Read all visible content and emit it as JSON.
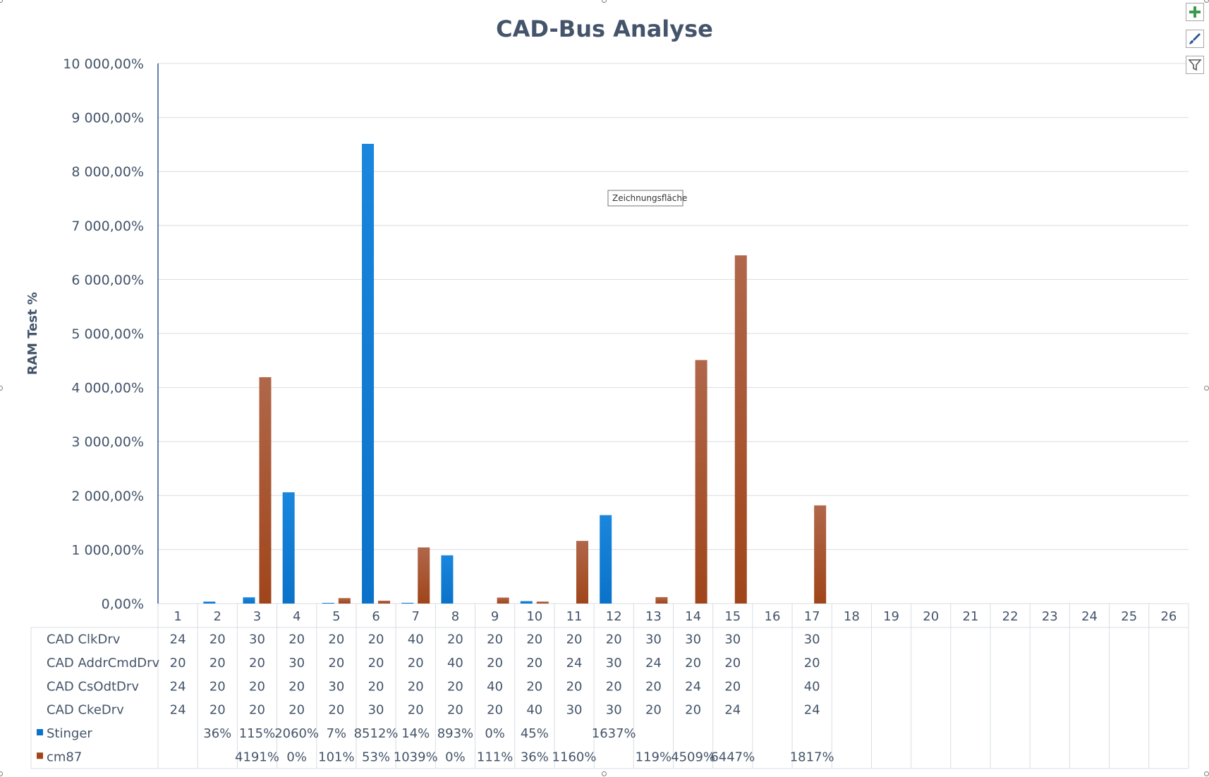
{
  "tooltip": "Zeichnungsfläche",
  "icons": [
    "plus-icon",
    "brush-icon",
    "filter-icon"
  ],
  "colors": {
    "stinger": "#0a72c9",
    "cm87": "#a0451a",
    "text": "#44546a",
    "grid": "#d9dce3"
  },
  "chart_data": {
    "type": "bar",
    "title": "CAD-Bus Analyse",
    "ylabel": "RAM Test %",
    "xlabel": "",
    "ylim": [
      0,
      10000
    ],
    "ytick_step": 1000,
    "ytick_labels": [
      "0,00%",
      "1 000,00%",
      "2 000,00%",
      "3 000,00%",
      "4 000,00%",
      "5 000,00%",
      "6 000,00%",
      "7 000,00%",
      "8 000,00%",
      "9 000,00%",
      "10 000,00%"
    ],
    "categories": [
      "1",
      "2",
      "3",
      "4",
      "5",
      "6",
      "7",
      "8",
      "9",
      "10",
      "11",
      "12",
      "13",
      "14",
      "15",
      "16",
      "17",
      "18",
      "19",
      "20",
      "21",
      "22",
      "23",
      "24",
      "25",
      "26"
    ],
    "grid": true,
    "legend": "data-table",
    "series": [
      {
        "name": "Stinger",
        "color": "#0a72c9",
        "values": [
          null,
          36,
          115,
          2060,
          7,
          8512,
          14,
          893,
          0,
          45,
          null,
          1637,
          null,
          null,
          null,
          null,
          null,
          null,
          null,
          null,
          null,
          null,
          null,
          null,
          null,
          null
        ],
        "labels": [
          "",
          "36%",
          "115%",
          "2060%",
          "7%",
          "8512%",
          "14%",
          "893%",
          "0%",
          "45%",
          "",
          "1637%",
          "",
          "",
          "",
          "",
          "",
          "",
          "",
          "",
          "",
          "",
          "",
          "",
          "",
          ""
        ]
      },
      {
        "name": "cm87",
        "color": "#a0451a",
        "values": [
          null,
          null,
          4191,
          0,
          101,
          53,
          1039,
          0,
          111,
          36,
          1160,
          null,
          119,
          4509,
          6447,
          null,
          1817,
          null,
          null,
          null,
          null,
          null,
          null,
          null,
          null,
          null
        ],
        "labels": [
          "",
          "",
          "4191%",
          "0%",
          "101%",
          "53%",
          "1039%",
          "0%",
          "111%",
          "36%",
          "1160%",
          "",
          "119%",
          "4509%",
          "6447%",
          "",
          "1817%",
          "",
          "",
          "",
          "",
          "",
          "",
          "",
          "",
          ""
        ]
      }
    ],
    "table_rows": [
      {
        "name": "CAD ClkDrv",
        "values": [
          "24",
          "20",
          "30",
          "20",
          "20",
          "20",
          "40",
          "20",
          "20",
          "20",
          "20",
          "20",
          "30",
          "30",
          "30",
          "",
          "30",
          "",
          "",
          "",
          "",
          "",
          "",
          "",
          "",
          ""
        ]
      },
      {
        "name": "CAD AddrCmdDrv",
        "values": [
          "20",
          "20",
          "20",
          "30",
          "20",
          "20",
          "20",
          "40",
          "20",
          "20",
          "24",
          "30",
          "24",
          "20",
          "20",
          "",
          "20",
          "",
          "",
          "",
          "",
          "",
          "",
          "",
          "",
          ""
        ]
      },
      {
        "name": "CAD CsOdtDrv",
        "values": [
          "24",
          "20",
          "20",
          "20",
          "30",
          "20",
          "20",
          "20",
          "40",
          "20",
          "20",
          "20",
          "20",
          "24",
          "20",
          "",
          "40",
          "",
          "",
          "",
          "",
          "",
          "",
          "",
          "",
          ""
        ]
      },
      {
        "name": "CAD CkeDrv",
        "values": [
          "24",
          "20",
          "20",
          "20",
          "20",
          "30",
          "20",
          "20",
          "20",
          "40",
          "30",
          "30",
          "20",
          "20",
          "24",
          "",
          "24",
          "",
          "",
          "",
          "",
          "",
          "",
          "",
          "",
          ""
        ]
      }
    ]
  }
}
